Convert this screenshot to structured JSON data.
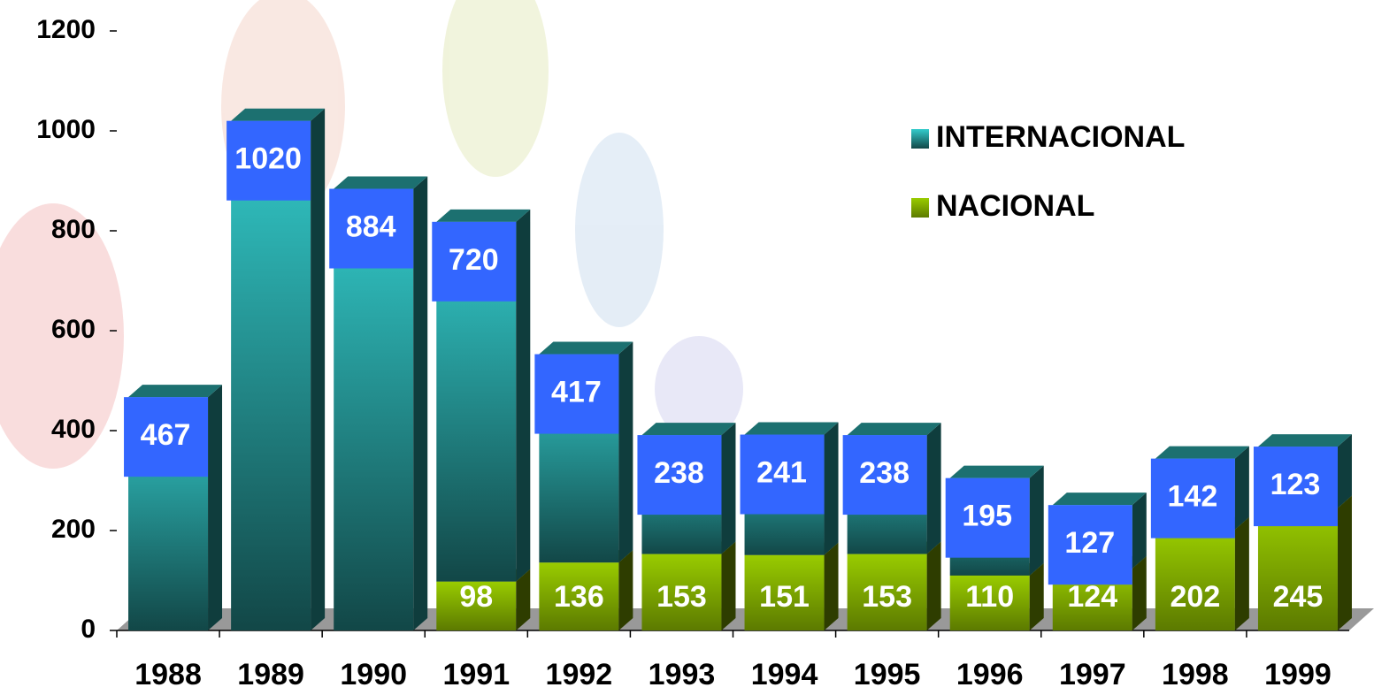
{
  "chart_data": {
    "type": "bar",
    "stacked": true,
    "categories": [
      "1988",
      "1989",
      "1990",
      "1991",
      "1992",
      "1993",
      "1994",
      "1995",
      "1996",
      "1997",
      "1998",
      "1999"
    ],
    "series": [
      {
        "name": "NACIONAL",
        "color": "#99cc00",
        "values": [
          null,
          null,
          null,
          98,
          136,
          153,
          151,
          153,
          110,
          124,
          202,
          245
        ]
      },
      {
        "name": "INTERNACIONAL",
        "color": "#33cccc",
        "values": [
          467,
          1020,
          884,
          720,
          417,
          238,
          241,
          238,
          195,
          127,
          142,
          123
        ]
      }
    ],
    "ylim": [
      0,
      1200
    ],
    "yticks": [
      0,
      200,
      400,
      600,
      800,
      1000,
      1200
    ],
    "legend": "top-right"
  }
}
